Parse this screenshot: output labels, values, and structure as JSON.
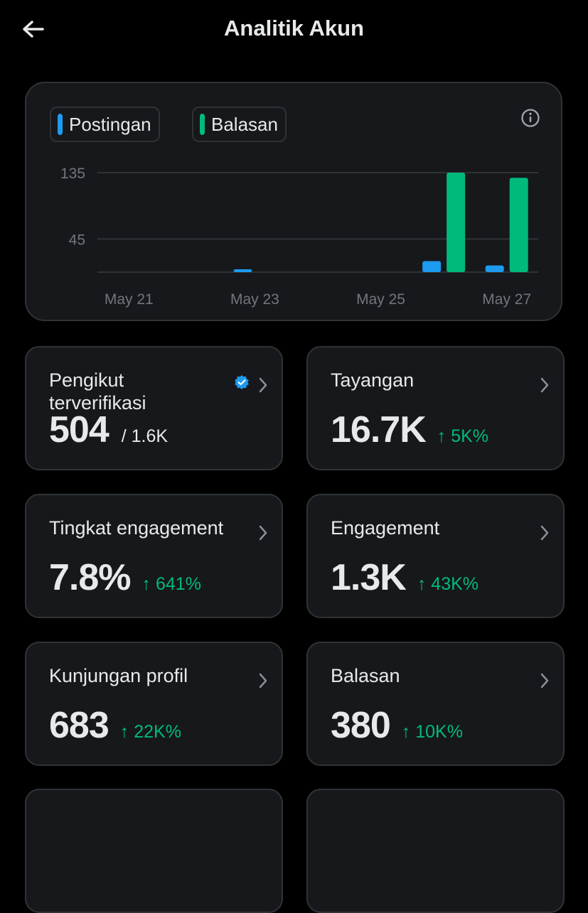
{
  "header": {
    "title": "Analitik Akun",
    "back_icon": "arrow-left-icon"
  },
  "chart_data": {
    "type": "bar",
    "categories": [
      "May 21",
      "May 22",
      "May 23",
      "May 24",
      "May 25",
      "May 26",
      "May 27"
    ],
    "series": [
      {
        "name": "Postingan",
        "color": "#1d9bf0",
        "values": [
          0,
          0,
          3,
          0,
          0,
          15,
          9
        ]
      },
      {
        "name": "Balasan",
        "color": "#00ba7c",
        "values": [
          0,
          0,
          0,
          0,
          0,
          135,
          128
        ]
      }
    ],
    "tick_labels_x": [
      "May 21",
      "May 23",
      "May 25",
      "May 27"
    ],
    "y_ticks": [
      "135",
      "45"
    ],
    "ylim": [
      0,
      135
    ],
    "grid": true,
    "legend": "top-left"
  },
  "info_icon": "info-circle-icon",
  "stats": {
    "verified_followers": {
      "label_line1": "Pengikut",
      "label_line2": "terverifikasi",
      "value": "504",
      "sub": "/ 1.6K"
    },
    "impressions": {
      "label": "Tayangan",
      "value": "16.7K",
      "change": "↑ 5K%"
    },
    "engagement_rate": {
      "label": "Tingkat engagement",
      "value": "7.8%",
      "change": "↑ 641%"
    },
    "engagements": {
      "label": "Engagement",
      "value": "1.3K",
      "change": "↑ 43K%"
    },
    "profile_visits": {
      "label": "Kunjungan profil",
      "value": "683",
      "change": "↑ 22K%"
    },
    "replies": {
      "label": "Balasan",
      "value": "380",
      "change": "↑ 10K%"
    }
  },
  "colors": {
    "accent_blue": "#1d9bf0",
    "accent_green": "#00ba7c",
    "card_bg": "#16181c",
    "border": "#2f3336"
  }
}
